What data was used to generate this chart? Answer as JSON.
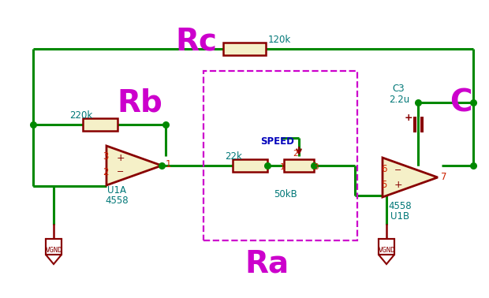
{
  "bg_color": "#ffffff",
  "green": "#008800",
  "dark_red": "#880000",
  "magenta": "#cc00cc",
  "blue": "#0000bb",
  "teal": "#007777",
  "pin_red": "#cc2200",
  "res_fill": "#f5f0c8",
  "op_fill": "#f5f0c8",
  "title_Rc": "Rc",
  "title_Rb": "Rb",
  "title_Ra": "Ra",
  "title_C": "C",
  "label_120k": "120k",
  "label_220k": "220k",
  "label_22k": "22k",
  "label_50kB": "50kB",
  "label_C3": "C3",
  "label_22u": "2.2u",
  "label_SPEED": "SPEED",
  "label_U1A": "U1A",
  "label_4558a": "4558",
  "label_U1B": "U1B",
  "label_4558b": "4558"
}
